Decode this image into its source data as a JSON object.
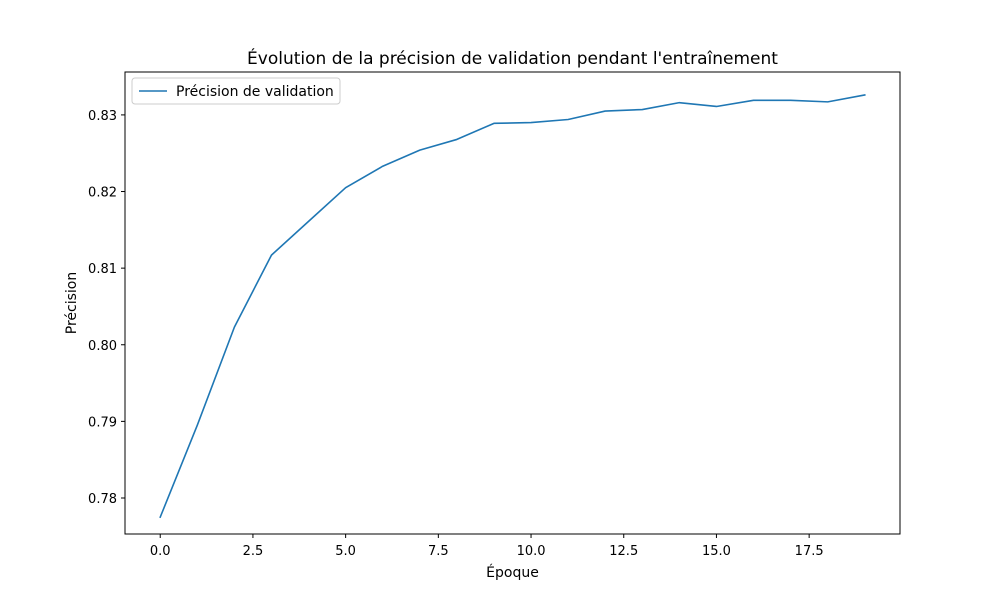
{
  "chart_data": {
    "type": "line",
    "title": "Évolution de la précision de validation pendant l'entraînement",
    "xlabel": "Époque",
    "ylabel": "Précision",
    "xlim": [
      -0.95,
      19.95
    ],
    "ylim": [
      0.7753,
      0.8356
    ],
    "xticks": [
      0.0,
      2.5,
      5.0,
      7.5,
      10.0,
      12.5,
      15.0,
      17.5
    ],
    "xtick_labels": [
      "0.0",
      "2.5",
      "5.0",
      "7.5",
      "10.0",
      "12.5",
      "15.0",
      "17.5"
    ],
    "yticks": [
      0.78,
      0.79,
      0.8,
      0.81,
      0.82,
      0.83
    ],
    "ytick_labels": [
      "0.78",
      "0.79",
      "0.80",
      "0.81",
      "0.82",
      "0.83"
    ],
    "grid": false,
    "legend_position": "top-left",
    "series": [
      {
        "name": "Précision de validation",
        "color": "#1f77b4",
        "x": [
          0,
          1,
          2,
          3,
          4,
          5,
          6,
          7,
          8,
          9,
          10,
          11,
          12,
          13,
          14,
          15,
          16,
          17,
          18,
          19
        ],
        "values": [
          0.7775,
          0.7895,
          0.8023,
          0.8117,
          0.8161,
          0.8205,
          0.8233,
          0.8254,
          0.8268,
          0.8289,
          0.829,
          0.8294,
          0.8305,
          0.8307,
          0.8316,
          0.8311,
          0.8319,
          0.8319,
          0.8317,
          0.8326
        ]
      }
    ]
  }
}
